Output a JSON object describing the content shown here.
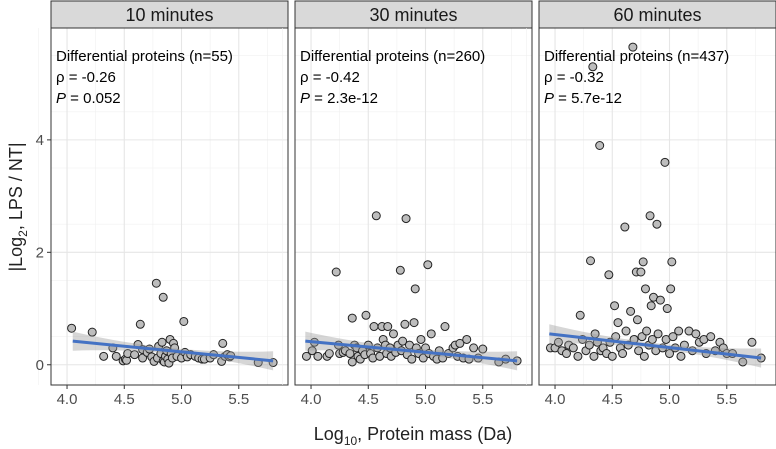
{
  "chart_data": {
    "type": "scatter",
    "xlabel": "Log10, Protein mass (Da)",
    "xlabel_main": "Log",
    "xlabel_sub": "10",
    "xlabel_rest": ", Protein mass (Da)",
    "ylabel_pre": "|Log",
    "ylabel_sub": "2",
    "ylabel_rest": ", LPS / NT|",
    "xlim": [
      3.86,
      5.93
    ],
    "ylim": [
      -0.36,
      5.99
    ],
    "xticks": [
      "4.0",
      "4.5",
      "5.0",
      "5.5"
    ],
    "yticks": [
      "0",
      "2",
      "4"
    ],
    "grid": true,
    "point_color": "#bdbdbd",
    "line_color": "#4472c4",
    "panels": [
      {
        "title": "10 minutes",
        "annotation": {
          "line1": "Differential proteins (n=55)",
          "rho": "ρ = -0.26",
          "p_label": "P",
          "p_value": " = 0.052"
        },
        "fit": [
          [
            4.05,
            0.42
          ],
          [
            5.8,
            0.07
          ]
        ],
        "points": [
          [
            4.04,
            0.65
          ],
          [
            4.22,
            0.58
          ],
          [
            4.32,
            0.15
          ],
          [
            4.4,
            0.3
          ],
          [
            4.43,
            0.15
          ],
          [
            4.49,
            0.07
          ],
          [
            4.51,
            0.1
          ],
          [
            4.52,
            0.08
          ],
          [
            4.53,
            0.2
          ],
          [
            4.59,
            0.18
          ],
          [
            4.62,
            0.36
          ],
          [
            4.64,
            0.72
          ],
          [
            4.66,
            0.27
          ],
          [
            4.66,
            0.12
          ],
          [
            4.7,
            0.22
          ],
          [
            4.72,
            0.28
          ],
          [
            4.74,
            0.14
          ],
          [
            4.76,
            0.06
          ],
          [
            4.78,
            1.45
          ],
          [
            4.79,
            0.12
          ],
          [
            4.8,
            0.33
          ],
          [
            4.82,
            0.2
          ],
          [
            4.83,
            0.4
          ],
          [
            4.84,
            1.2
          ],
          [
            4.84,
            0.07
          ],
          [
            4.85,
            0.05
          ],
          [
            4.86,
            0.15
          ],
          [
            4.87,
            0.25
          ],
          [
            4.88,
            0.1
          ],
          [
            4.89,
            0.03
          ],
          [
            4.9,
            0.45
          ],
          [
            4.91,
            0.2
          ],
          [
            4.92,
            0.12
          ],
          [
            4.93,
            0.38
          ],
          [
            4.94,
            0.3
          ],
          [
            4.96,
            0.15
          ],
          [
            5.0,
            0.12
          ],
          [
            5.02,
            0.77
          ],
          [
            5.03,
            0.22
          ],
          [
            5.05,
            0.14
          ],
          [
            5.08,
            0.18
          ],
          [
            5.12,
            0.15
          ],
          [
            5.15,
            0.12
          ],
          [
            5.18,
            0.1
          ],
          [
            5.2,
            0.1
          ],
          [
            5.25,
            0.12
          ],
          [
            5.28,
            0.18
          ],
          [
            5.35,
            0.06
          ],
          [
            5.36,
            0.38
          ],
          [
            5.38,
            0.15
          ],
          [
            5.4,
            0.18
          ],
          [
            5.42,
            0.14
          ],
          [
            5.43,
            0.16
          ],
          [
            5.67,
            0.04
          ],
          [
            5.8,
            0.04
          ]
        ]
      },
      {
        "title": "30 minutes",
        "annotation": {
          "line1": "Differential proteins (n=260)",
          "rho": "ρ = -0.42",
          "p_label": "P",
          "p_value": " = 2.3e-12"
        },
        "fit": [
          [
            3.95,
            0.42
          ],
          [
            5.8,
            0.07
          ]
        ],
        "points": [
          [
            3.96,
            0.15
          ],
          [
            4.01,
            0.25
          ],
          [
            4.03,
            0.4
          ],
          [
            4.06,
            0.15
          ],
          [
            4.14,
            0.15
          ],
          [
            4.16,
            0.2
          ],
          [
            4.22,
            1.65
          ],
          [
            4.24,
            0.35
          ],
          [
            4.25,
            0.2
          ],
          [
            4.28,
            0.22
          ],
          [
            4.3,
            0.25
          ],
          [
            4.34,
            0.2
          ],
          [
            4.36,
            0.83
          ],
          [
            4.36,
            0.05
          ],
          [
            4.38,
            0.35
          ],
          [
            4.4,
            0.3
          ],
          [
            4.41,
            0.15
          ],
          [
            4.43,
            0.1
          ],
          [
            4.45,
            0.25
          ],
          [
            4.47,
            0.18
          ],
          [
            4.48,
            0.88
          ],
          [
            4.5,
            0.35
          ],
          [
            4.52,
            0.2
          ],
          [
            4.54,
            0.12
          ],
          [
            4.55,
            0.68
          ],
          [
            4.57,
            2.65
          ],
          [
            4.58,
            0.3
          ],
          [
            4.6,
            0.15
          ],
          [
            4.62,
            0.68
          ],
          [
            4.63,
            0.45
          ],
          [
            4.65,
            0.35
          ],
          [
            4.66,
            0.2
          ],
          [
            4.67,
            0.68
          ],
          [
            4.69,
            0.3
          ],
          [
            4.7,
            0.15
          ],
          [
            4.72,
            0.55
          ],
          [
            4.74,
            0.22
          ],
          [
            4.76,
            0.35
          ],
          [
            4.78,
            1.68
          ],
          [
            4.79,
            0.25
          ],
          [
            4.8,
            0.42
          ],
          [
            4.82,
            0.72
          ],
          [
            4.83,
            2.6
          ],
          [
            4.84,
            0.18
          ],
          [
            4.86,
            0.35
          ],
          [
            4.88,
            0.1
          ],
          [
            4.9,
            0.75
          ],
          [
            4.91,
            1.35
          ],
          [
            4.92,
            0.3
          ],
          [
            4.94,
            0.2
          ],
          [
            4.96,
            0.45
          ],
          [
            4.98,
            0.12
          ],
          [
            5.0,
            0.3
          ],
          [
            5.02,
            1.78
          ],
          [
            5.03,
            0.2
          ],
          [
            5.05,
            0.55
          ],
          [
            5.07,
            0.15
          ],
          [
            5.1,
            0.1
          ],
          [
            5.12,
            0.25
          ],
          [
            5.15,
            0.12
          ],
          [
            5.17,
            0.68
          ],
          [
            5.2,
            0.2
          ],
          [
            5.24,
            0.3
          ],
          [
            5.26,
            0.35
          ],
          [
            5.28,
            0.15
          ],
          [
            5.3,
            0.38
          ],
          [
            5.33,
            0.12
          ],
          [
            5.36,
            0.45
          ],
          [
            5.38,
            0.1
          ],
          [
            5.42,
            0.3
          ],
          [
            5.46,
            0.12
          ],
          [
            5.5,
            0.28
          ],
          [
            5.64,
            0.05
          ],
          [
            5.7,
            0.1
          ],
          [
            5.8,
            0.07
          ]
        ]
      },
      {
        "title": "60 minutes",
        "annotation": {
          "line1": "Differential proteins (n=437)",
          "rho": "ρ = -0.32",
          "p_label": "P",
          "p_value": " = 5.7e-12"
        },
        "fit": [
          [
            3.95,
            0.55
          ],
          [
            5.8,
            0.12
          ]
        ],
        "points": [
          [
            3.96,
            0.3
          ],
          [
            4.0,
            0.3
          ],
          [
            4.03,
            0.4
          ],
          [
            4.06,
            0.25
          ],
          [
            4.1,
            0.2
          ],
          [
            4.12,
            0.35
          ],
          [
            4.16,
            0.3
          ],
          [
            4.2,
            0.15
          ],
          [
            4.22,
            0.88
          ],
          [
            4.24,
            0.45
          ],
          [
            4.27,
            0.25
          ],
          [
            4.3,
            0.35
          ],
          [
            4.31,
            1.85
          ],
          [
            4.33,
            5.3
          ],
          [
            4.34,
            0.15
          ],
          [
            4.35,
            0.55
          ],
          [
            4.37,
            0.4
          ],
          [
            4.39,
            3.9
          ],
          [
            4.4,
            0.25
          ],
          [
            4.42,
            0.3
          ],
          [
            4.45,
            0.2
          ],
          [
            4.47,
            1.6
          ],
          [
            4.48,
            0.4
          ],
          [
            4.5,
            0.15
          ],
          [
            4.52,
            1.05
          ],
          [
            4.53,
            0.5
          ],
          [
            4.55,
            0.75
          ],
          [
            4.57,
            0.3
          ],
          [
            4.59,
            0.2
          ],
          [
            4.61,
            2.45
          ],
          [
            4.62,
            0.6
          ],
          [
            4.64,
            0.35
          ],
          [
            4.66,
            0.95
          ],
          [
            4.68,
            5.65
          ],
          [
            4.69,
            0.45
          ],
          [
            4.71,
            1.65
          ],
          [
            4.72,
            0.8
          ],
          [
            4.73,
            0.25
          ],
          [
            4.75,
            1.65
          ],
          [
            4.76,
            0.5
          ],
          [
            4.77,
            1.83
          ],
          [
            4.78,
            0.15
          ],
          [
            4.79,
            1.35
          ],
          [
            4.8,
            0.6
          ],
          [
            4.82,
            0.35
          ],
          [
            4.83,
            2.65
          ],
          [
            4.84,
            1.05
          ],
          [
            4.85,
            0.45
          ],
          [
            4.86,
            1.2
          ],
          [
            4.88,
            0.25
          ],
          [
            4.89,
            2.5
          ],
          [
            4.9,
            0.55
          ],
          [
            4.92,
            1.15
          ],
          [
            4.94,
            0.3
          ],
          [
            4.96,
            3.6
          ],
          [
            4.97,
            0.45
          ],
          [
            4.98,
            1.0
          ],
          [
            5.0,
            0.2
          ],
          [
            5.01,
            1.35
          ],
          [
            5.02,
            1.83
          ],
          [
            5.03,
            0.5
          ],
          [
            5.05,
            0.3
          ],
          [
            5.08,
            0.6
          ],
          [
            5.1,
            0.15
          ],
          [
            5.13,
            0.35
          ],
          [
            5.17,
            0.6
          ],
          [
            5.2,
            0.25
          ],
          [
            5.23,
            0.55
          ],
          [
            5.26,
            0.4
          ],
          [
            5.3,
            0.45
          ],
          [
            5.32,
            0.2
          ],
          [
            5.36,
            0.5
          ],
          [
            5.4,
            0.25
          ],
          [
            5.44,
            0.4
          ],
          [
            5.47,
            0.3
          ],
          [
            5.5,
            0.2
          ],
          [
            5.55,
            0.2
          ],
          [
            5.64,
            0.05
          ],
          [
            5.72,
            0.4
          ],
          [
            5.8,
            0.12
          ]
        ]
      }
    ]
  }
}
